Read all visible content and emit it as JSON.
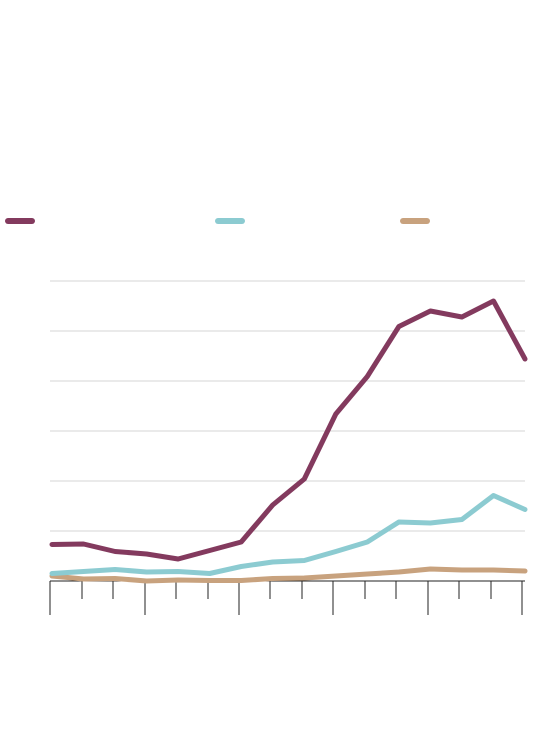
{
  "chart_data": {
    "type": "line",
    "x": [
      1,
      2,
      3,
      4,
      5,
      6,
      7,
      8,
      9,
      10,
      11,
      12,
      13,
      14,
      15,
      16
    ],
    "ylim": [
      0,
      6
    ],
    "grid": true,
    "legend_position": "top",
    "series": [
      {
        "color": "#833a5e",
        "values": [
          0.73,
          0.74,
          0.59,
          0.54,
          0.44,
          0.61,
          0.78,
          1.52,
          2.04,
          3.34,
          4.09,
          5.09,
          5.4,
          5.28,
          5.6,
          4.44
        ]
      },
      {
        "color": "#8ccbd1",
        "values": [
          0.15,
          0.19,
          0.23,
          0.18,
          0.19,
          0.15,
          0.29,
          0.38,
          0.41,
          0.59,
          0.78,
          1.18,
          1.16,
          1.23,
          1.71,
          1.43
        ]
      },
      {
        "color": "#c8a27e",
        "values": [
          0.1,
          0.04,
          0.05,
          0.0,
          0.02,
          0.01,
          0.01,
          0.05,
          0.06,
          0.1,
          0.14,
          0.18,
          0.24,
          0.22,
          0.22,
          0.2
        ]
      }
    ]
  }
}
